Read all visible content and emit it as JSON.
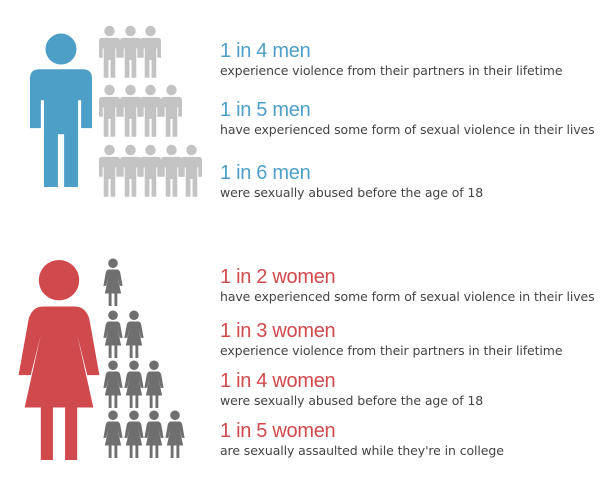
{
  "colors": {
    "men_accent": "#4e9fc8",
    "women_accent": "#d04a4d",
    "small_man_gray": "#c3c3c3",
    "small_woman_gray": "#6f6f6f",
    "description_text": "#444444"
  },
  "men": {
    "stats": [
      {
        "head": "1 in 4 men",
        "desc": "experience violence from their partners in their lifetime"
      },
      {
        "head": "1 in 5 men",
        "desc": "have experienced some form of sexual violence in their lives"
      },
      {
        "head": "1 in 6 men",
        "desc": "were sexually abused before the age of 18"
      }
    ]
  },
  "women": {
    "stats": [
      {
        "head": "1 in 2 women",
        "desc": "have experienced some form of sexual violence in their lives"
      },
      {
        "head": "1 in 3 women",
        "desc": "experience violence from their partners in their lifetime"
      },
      {
        "head": "1 in 4 women",
        "desc": "were sexually abused before the age of 18"
      },
      {
        "head": "1 in 5 women",
        "desc": "are sexually assaulted while they're in college"
      }
    ]
  },
  "icons": {
    "big_man": "man-icon",
    "big_woman": "woman-icon",
    "small_man": "man-icon",
    "small_woman": "woman-icon",
    "men_rows": [
      3,
      4,
      5
    ],
    "women_rows": [
      1,
      2,
      3,
      4
    ]
  }
}
